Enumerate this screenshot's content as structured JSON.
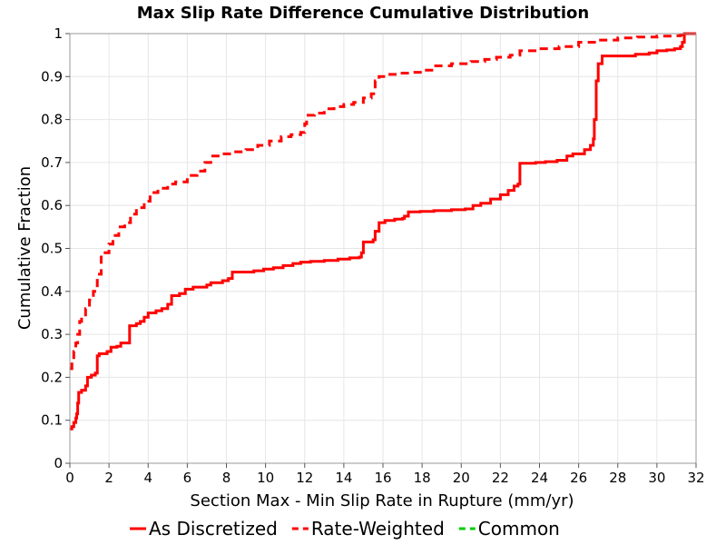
{
  "chart_data": {
    "type": "line",
    "title": "Max Slip Rate Difference Cumulative Distribution",
    "xlabel": "Section Max - Min Slip Rate in Rupture (mm/yr)",
    "ylabel": "Cumulative Fraction",
    "xlim": [
      0,
      32
    ],
    "ylim": [
      0,
      1
    ],
    "xticks": [
      0,
      2,
      4,
      6,
      8,
      10,
      12,
      14,
      16,
      18,
      20,
      22,
      24,
      26,
      28,
      30,
      32
    ],
    "yticks": [
      0,
      0.1,
      0.2,
      0.3,
      0.4,
      0.5,
      0.6,
      0.7,
      0.8,
      0.9,
      1
    ],
    "grid": true,
    "legend_position": "bottom",
    "series": [
      {
        "name": "As Discretized",
        "color": "#ff0000",
        "dash": "solid",
        "x": [
          0,
          0.1,
          0.2,
          0.3,
          0.35,
          0.4,
          0.45,
          0.6,
          0.8,
          0.9,
          1.1,
          1.3,
          1.4,
          1.5,
          1.9,
          2.1,
          2.4,
          2.6,
          3.0,
          3.05,
          3.4,
          3.6,
          3.8,
          4.0,
          4.4,
          4.7,
          5.0,
          5.2,
          5.6,
          5.9,
          6.3,
          7.0,
          7.2,
          7.8,
          8.1,
          8.3,
          9.0,
          9.4,
          9.9,
          10.4,
          10.9,
          11.4,
          11.8,
          12.3,
          13.0,
          13.7,
          14.3,
          14.8,
          14.9,
          15.0,
          15.5,
          15.6,
          15.8,
          16.1,
          16.6,
          17.0,
          17.1,
          17.3,
          17.9,
          18.6,
          19.5,
          20.2,
          20.6,
          21.0,
          21.5,
          22.0,
          22.4,
          22.7,
          22.9,
          23.0,
          23.8,
          24.3,
          24.9,
          25.4,
          25.7,
          26.3,
          26.6,
          26.75,
          26.8,
          26.9,
          27.0,
          27.2,
          28.2,
          28.9,
          29.6,
          30.0,
          30.5,
          30.9,
          31.2,
          31.3,
          31.4,
          32.0
        ],
        "y": [
          0.08,
          0.085,
          0.095,
          0.105,
          0.115,
          0.14,
          0.165,
          0.17,
          0.18,
          0.2,
          0.205,
          0.21,
          0.25,
          0.255,
          0.26,
          0.27,
          0.272,
          0.28,
          0.28,
          0.32,
          0.325,
          0.33,
          0.34,
          0.35,
          0.355,
          0.36,
          0.37,
          0.39,
          0.395,
          0.405,
          0.41,
          0.415,
          0.42,
          0.425,
          0.43,
          0.445,
          0.445,
          0.448,
          0.452,
          0.455,
          0.46,
          0.465,
          0.468,
          0.47,
          0.472,
          0.475,
          0.478,
          0.48,
          0.49,
          0.515,
          0.52,
          0.54,
          0.56,
          0.565,
          0.568,
          0.57,
          0.575,
          0.585,
          0.586,
          0.588,
          0.59,
          0.592,
          0.6,
          0.605,
          0.615,
          0.625,
          0.635,
          0.645,
          0.65,
          0.698,
          0.7,
          0.702,
          0.705,
          0.715,
          0.72,
          0.73,
          0.74,
          0.755,
          0.8,
          0.89,
          0.93,
          0.948,
          0.948,
          0.952,
          0.955,
          0.96,
          0.962,
          0.965,
          0.97,
          0.98,
          1.0,
          1.0
        ]
      },
      {
        "name": "Rate-Weighted",
        "color": "#ff0000",
        "dash": "dashed",
        "x": [
          0,
          0.1,
          0.2,
          0.3,
          0.4,
          0.5,
          0.6,
          0.8,
          1.0,
          1.2,
          1.4,
          1.6,
          1.8,
          2.0,
          2.2,
          2.5,
          2.8,
          3.1,
          3.4,
          3.8,
          4.1,
          4.5,
          5.0,
          5.4,
          6.0,
          6.5,
          6.9,
          7.2,
          7.8,
          8.4,
          9.0,
          9.6,
          10.2,
          10.8,
          11.3,
          11.8,
          12.0,
          12.1,
          12.5,
          13.0,
          13.5,
          14.0,
          14.5,
          15.0,
          15.4,
          15.6,
          15.8,
          16.2,
          16.8,
          17.5,
          18.0,
          18.6,
          19.5,
          20.5,
          21.2,
          21.8,
          22.5,
          23.0,
          24.0,
          25.0,
          26.0,
          27.0,
          28.0,
          29.0,
          30.0,
          30.8,
          31.2,
          31.4,
          32.0
        ],
        "y": [
          0.22,
          0.24,
          0.26,
          0.28,
          0.3,
          0.33,
          0.34,
          0.36,
          0.38,
          0.4,
          0.44,
          0.48,
          0.49,
          0.51,
          0.53,
          0.55,
          0.56,
          0.58,
          0.595,
          0.61,
          0.63,
          0.64,
          0.65,
          0.655,
          0.67,
          0.68,
          0.7,
          0.715,
          0.72,
          0.725,
          0.73,
          0.74,
          0.75,
          0.76,
          0.765,
          0.77,
          0.79,
          0.81,
          0.815,
          0.825,
          0.83,
          0.835,
          0.84,
          0.85,
          0.86,
          0.89,
          0.9,
          0.905,
          0.908,
          0.91,
          0.915,
          0.925,
          0.93,
          0.935,
          0.94,
          0.945,
          0.95,
          0.96,
          0.965,
          0.97,
          0.98,
          0.985,
          0.99,
          0.992,
          0.994,
          0.995,
          0.997,
          1.0,
          1.0
        ]
      },
      {
        "name": "Common",
        "color": "#00cc00",
        "dash": "dashed",
        "x": [],
        "y": []
      }
    ]
  }
}
